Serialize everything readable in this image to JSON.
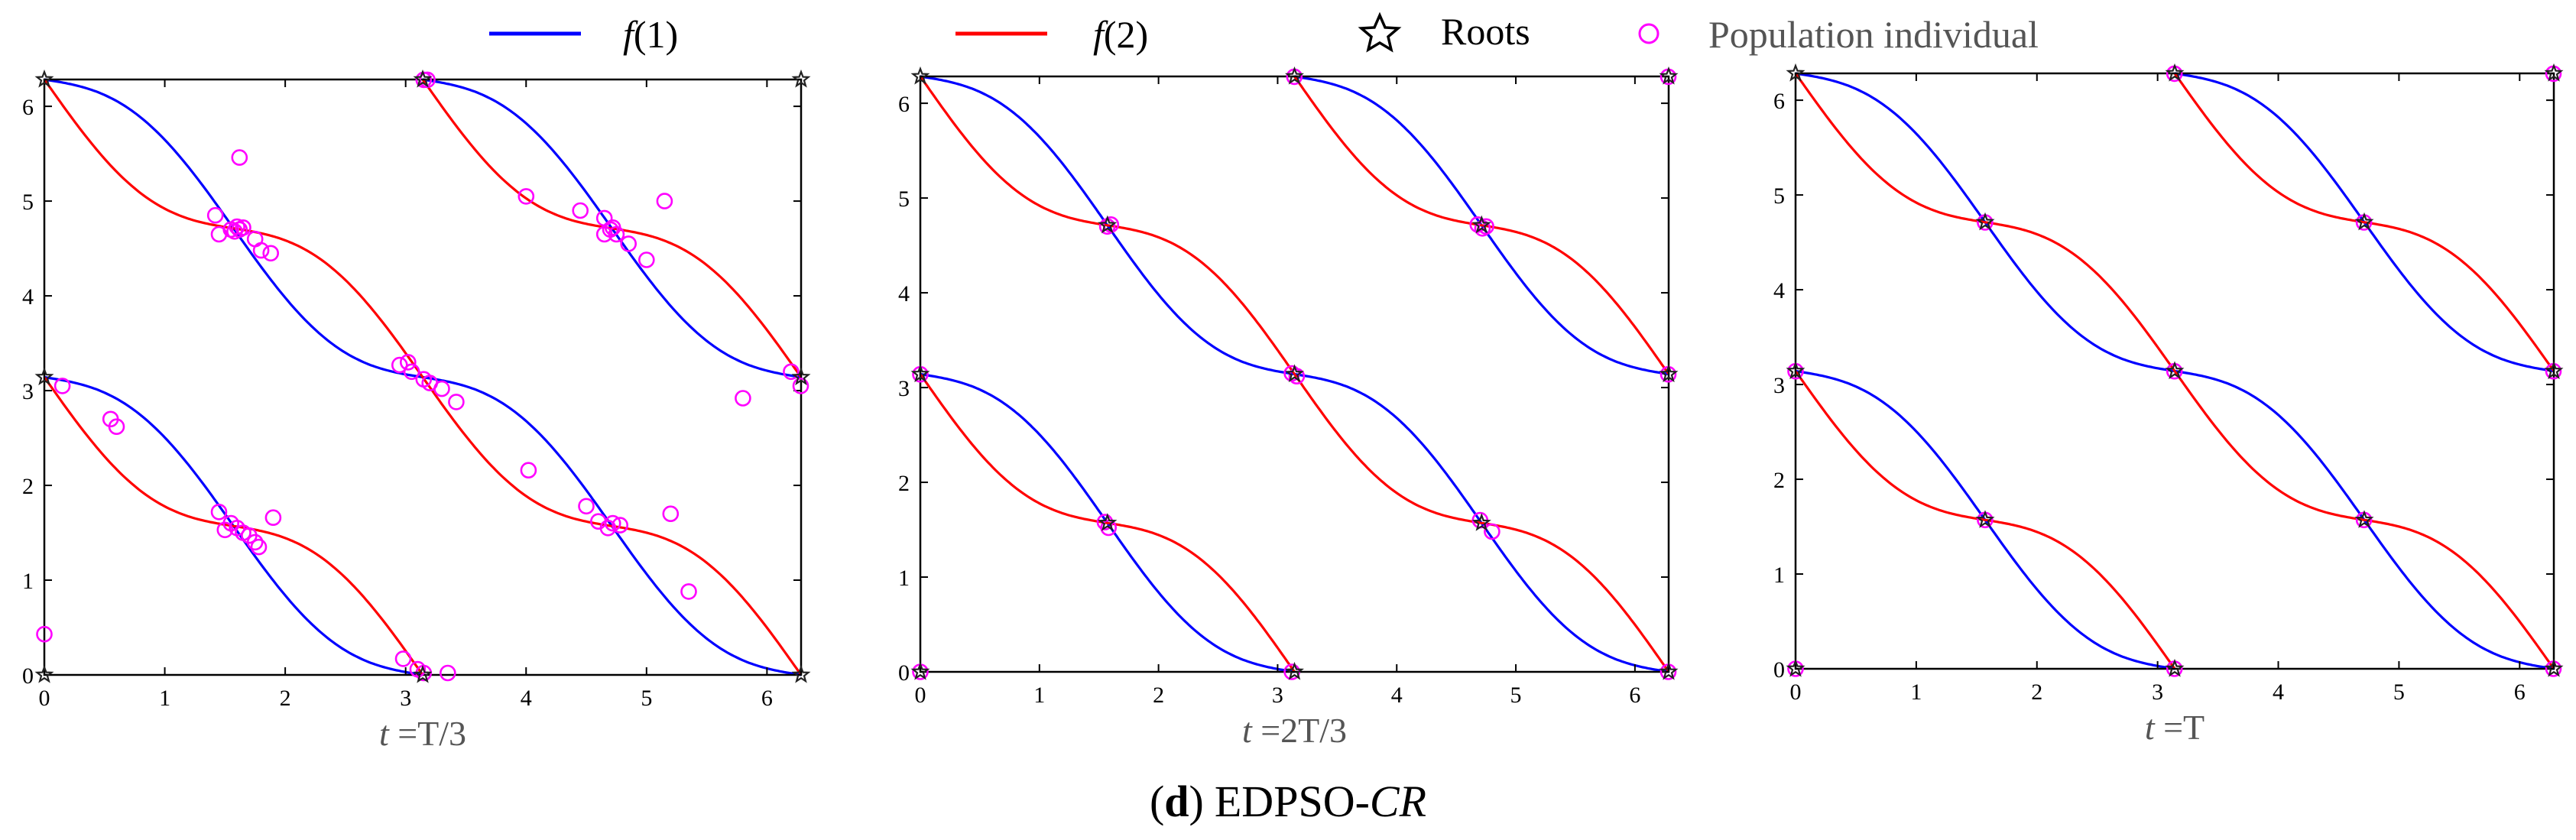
{
  "legend": {
    "entries": [
      {
        "label_pre": "f",
        "label_post": "(1)",
        "color": "#0000ff",
        "marker": "line"
      },
      {
        "label_pre": "f",
        "label_post": "(2)",
        "color": "#ff0000",
        "marker": "line"
      },
      {
        "label_pre": "",
        "label_post": "Roots",
        "color": "#000000",
        "marker": "star"
      },
      {
        "label_pre": "",
        "label_post": "Population individual",
        "color": "#ff00ff",
        "marker": "circle"
      }
    ]
  },
  "caption": {
    "open": "(",
    "letter": "d",
    "close": ")",
    "method": "EDPSO-",
    "method_italic": "CR"
  },
  "colors": {
    "f1": "#0000ff",
    "f2": "#ff0000",
    "population": "#ff00ff",
    "roots": "#222222"
  },
  "chart_data": [
    {
      "type": "line",
      "xlabel_var": "t",
      "xlabel_value": " =T/3",
      "xlim": [
        0,
        6.2832
      ],
      "ylim": [
        0,
        6.2832
      ],
      "xticks": [
        0,
        1,
        2,
        3,
        4,
        5,
        6
      ],
      "yticks": [
        0,
        1,
        2,
        3,
        4,
        5,
        6
      ],
      "roots": [
        [
          0,
          0
        ],
        [
          0,
          3.1416
        ],
        [
          0,
          6.2832
        ],
        [
          3.1416,
          0
        ],
        [
          3.1416,
          6.2832
        ],
        [
          6.2832,
          0
        ],
        [
          6.2832,
          3.1416
        ],
        [
          6.2832,
          6.2832
        ]
      ],
      "population": [
        [
          0,
          0.43
        ],
        [
          0.15,
          3.05
        ],
        [
          0.55,
          2.7
        ],
        [
          0.6,
          2.62
        ],
        [
          1.42,
          4.85
        ],
        [
          1.45,
          4.65
        ],
        [
          1.55,
          4.7
        ],
        [
          1.6,
          4.73
        ],
        [
          1.62,
          4.7
        ],
        [
          1.65,
          4.72
        ],
        [
          1.58,
          4.68
        ],
        [
          1.62,
          5.46
        ],
        [
          1.75,
          4.6
        ],
        [
          1.8,
          4.48
        ],
        [
          1.88,
          4.45
        ],
        [
          1.45,
          1.72
        ],
        [
          1.5,
          1.53
        ],
        [
          1.55,
          1.6
        ],
        [
          1.6,
          1.55
        ],
        [
          1.65,
          1.5
        ],
        [
          1.7,
          1.47
        ],
        [
          1.75,
          1.4
        ],
        [
          1.78,
          1.35
        ],
        [
          1.9,
          1.66
        ],
        [
          2.95,
          3.27
        ],
        [
          3.02,
          3.3
        ],
        [
          3.05,
          3.2
        ],
        [
          3.15,
          3.12
        ],
        [
          3.2,
          3.08
        ],
        [
          3.3,
          3.02
        ],
        [
          3.42,
          2.88
        ],
        [
          2.98,
          0.17
        ],
        [
          3.1,
          0.06
        ],
        [
          3.15,
          0.02
        ],
        [
          3.35,
          0.02
        ],
        [
          3.15,
          6.28
        ],
        [
          3.18,
          6.28
        ],
        [
          4.0,
          5.05
        ],
        [
          4.02,
          2.16
        ],
        [
          4.45,
          4.9
        ],
        [
          4.5,
          1.78
        ],
        [
          4.6,
          1.62
        ],
        [
          4.65,
          4.82
        ],
        [
          4.7,
          4.7
        ],
        [
          4.65,
          4.65
        ],
        [
          4.72,
          4.72
        ],
        [
          4.75,
          4.65
        ],
        [
          4.68,
          1.55
        ],
        [
          4.72,
          1.6
        ],
        [
          4.78,
          1.58
        ],
        [
          4.85,
          4.55
        ],
        [
          5.0,
          4.38
        ],
        [
          5.15,
          5.0
        ],
        [
          5.2,
          1.7
        ],
        [
          5.35,
          0.88
        ],
        [
          5.8,
          2.92
        ],
        [
          6.2,
          3.2
        ],
        [
          6.28,
          3.05
        ]
      ]
    },
    {
      "type": "line",
      "xlabel_var": "t",
      "xlabel_value": " =2T/3",
      "xlim": [
        0,
        6.2832
      ],
      "ylim": [
        0,
        6.2832
      ],
      "xticks": [
        0,
        1,
        2,
        3,
        4,
        5,
        6
      ],
      "yticks": [
        0,
        1,
        2,
        3,
        4,
        5,
        6
      ],
      "roots": [
        [
          0,
          0
        ],
        [
          0,
          3.1416
        ],
        [
          0,
          6.2832
        ],
        [
          1.5708,
          1.5708
        ],
        [
          1.5708,
          4.7124
        ],
        [
          3.1416,
          0
        ],
        [
          3.1416,
          3.1416
        ],
        [
          3.1416,
          6.2832
        ],
        [
          4.7124,
          1.5708
        ],
        [
          4.7124,
          4.7124
        ],
        [
          6.2832,
          0
        ],
        [
          6.2832,
          3.1416
        ],
        [
          6.2832,
          6.2832
        ]
      ],
      "population": [
        [
          0,
          0
        ],
        [
          0,
          3.14
        ],
        [
          1.55,
          1.58
        ],
        [
          1.58,
          1.52
        ],
        [
          1.6,
          4.72
        ],
        [
          1.57,
          4.7
        ],
        [
          3.12,
          3.15
        ],
        [
          3.16,
          3.12
        ],
        [
          3.14,
          6.28
        ],
        [
          3.12,
          0
        ],
        [
          4.68,
          4.72
        ],
        [
          4.72,
          4.68
        ],
        [
          4.75,
          4.7
        ],
        [
          4.7,
          1.6
        ],
        [
          4.8,
          1.48
        ],
        [
          6.28,
          0
        ],
        [
          6.28,
          3.14
        ],
        [
          6.28,
          6.28
        ]
      ]
    },
    {
      "type": "line",
      "xlabel_var": "t",
      "xlabel_value": " =T",
      "xlim": [
        0,
        6.2832
      ],
      "ylim": [
        0,
        6.2832
      ],
      "xticks": [
        0,
        1,
        2,
        3,
        4,
        5,
        6
      ],
      "yticks": [
        0,
        1,
        2,
        3,
        4,
        5,
        6
      ],
      "roots": [
        [
          0,
          0
        ],
        [
          0,
          3.1416
        ],
        [
          0,
          6.2832
        ],
        [
          1.5708,
          1.5708
        ],
        [
          1.5708,
          4.7124
        ],
        [
          3.1416,
          0
        ],
        [
          3.1416,
          3.1416
        ],
        [
          3.1416,
          6.2832
        ],
        [
          4.7124,
          1.5708
        ],
        [
          4.7124,
          4.7124
        ],
        [
          6.2832,
          0
        ],
        [
          6.2832,
          3.1416
        ],
        [
          6.2832,
          6.2832
        ]
      ],
      "population": [
        [
          0,
          0
        ],
        [
          0,
          3.14
        ],
        [
          1.57,
          1.57
        ],
        [
          1.57,
          4.71
        ],
        [
          3.14,
          0
        ],
        [
          3.14,
          3.14
        ],
        [
          3.14,
          6.28
        ],
        [
          4.71,
          1.57
        ],
        [
          4.71,
          4.71
        ],
        [
          6.28,
          0
        ],
        [
          6.28,
          3.14
        ],
        [
          6.28,
          6.28
        ]
      ]
    }
  ]
}
